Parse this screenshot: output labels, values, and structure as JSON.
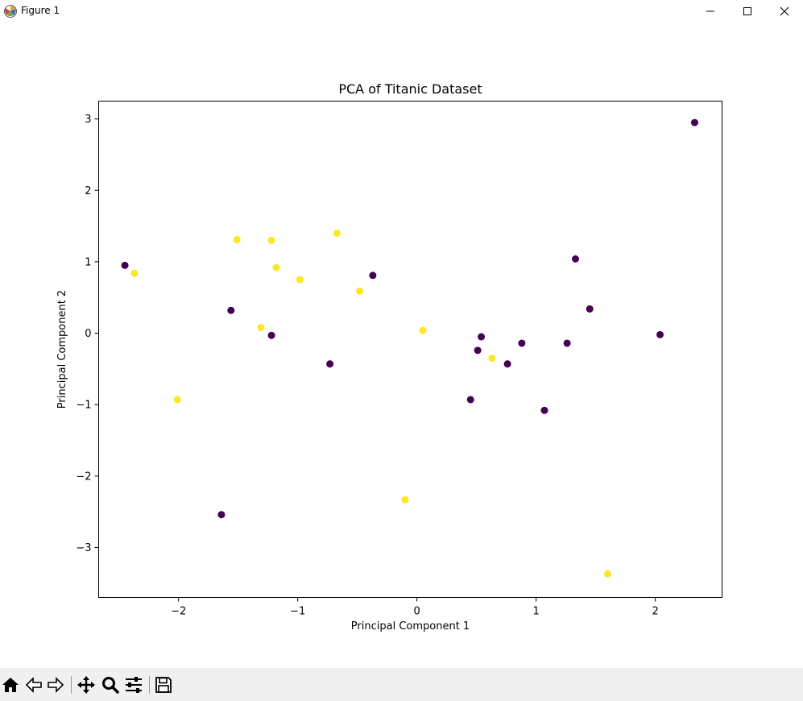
{
  "window": {
    "title": "Figure 1",
    "icon": "matplotlib-icon",
    "controls": [
      "minimize-icon",
      "maximize-icon",
      "close-icon"
    ]
  },
  "toolbar": {
    "items": [
      "home-icon",
      "back-arrow-icon",
      "forward-arrow-icon",
      "pan-icon",
      "zoom-icon",
      "configure-subplots-icon",
      "save-icon"
    ],
    "message": ""
  },
  "colors": {
    "class0": "#440154",
    "class1": "#fde725",
    "toolbar_bg": "#f0f0f0"
  },
  "chart_data": {
    "type": "scatter",
    "title": "PCA of Titanic Dataset",
    "xlabel": "Principal Component  1",
    "ylabel": "Principal Component  2",
    "xlim": [
      -2.67,
      2.56
    ],
    "ylim": [
      -3.7,
      3.25
    ],
    "xticks": [
      -2,
      -1,
      0,
      1,
      2
    ],
    "yticks": [
      -3,
      -2,
      -1,
      0,
      1,
      2,
      3
    ],
    "grid": false,
    "legend": "none",
    "series": [
      {
        "color": "#440154",
        "points": [
          [
            -2.45,
            0.95
          ],
          [
            -1.56,
            0.32
          ],
          [
            -1.64,
            -2.54
          ],
          [
            -1.22,
            -0.03
          ],
          [
            -0.73,
            -0.43
          ],
          [
            -0.37,
            0.81
          ],
          [
            0.45,
            -0.93
          ],
          [
            0.51,
            -0.24
          ],
          [
            0.54,
            -0.05
          ],
          [
            0.76,
            -0.43
          ],
          [
            0.88,
            -0.14
          ],
          [
            1.07,
            -1.08
          ],
          [
            1.26,
            -0.14
          ],
          [
            1.33,
            1.04
          ],
          [
            1.45,
            0.34
          ],
          [
            2.04,
            -0.02
          ],
          [
            2.33,
            2.95
          ]
        ]
      },
      {
        "color": "#fde725",
        "points": [
          [
            -2.37,
            0.84
          ],
          [
            -2.01,
            -0.93
          ],
          [
            -1.51,
            1.31
          ],
          [
            -1.31,
            0.08
          ],
          [
            -1.22,
            1.3
          ],
          [
            -1.18,
            0.92
          ],
          [
            -0.98,
            0.75
          ],
          [
            -0.67,
            1.4
          ],
          [
            -0.48,
            0.59
          ],
          [
            -0.1,
            -2.33
          ],
          [
            0.05,
            0.04
          ],
          [
            0.63,
            -0.35
          ],
          [
            1.6,
            -3.37
          ]
        ]
      }
    ]
  }
}
